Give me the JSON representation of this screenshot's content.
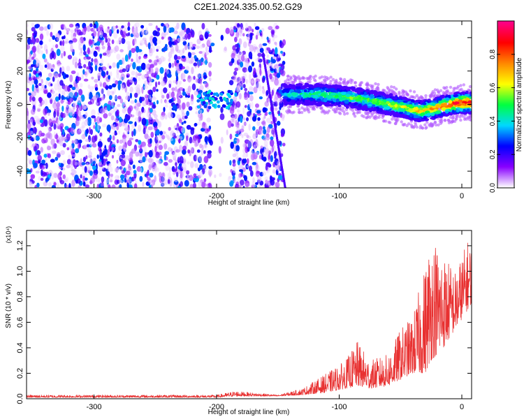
{
  "title": "C2E1.2024.335.00.52.G29",
  "chart_data": [
    {
      "type": "heatmap",
      "xlabel": "Height of straight line (km)",
      "ylabel": "Frequency (Hz)",
      "xlim": [
        -355,
        8
      ],
      "ylim": [
        -50,
        50
      ],
      "xticks": [
        -300,
        -200,
        -100,
        0
      ],
      "yticks": [
        -40,
        -20,
        0,
        20,
        40
      ],
      "xtick_labels": [
        "-300",
        "-200",
        "-100",
        "0"
      ],
      "ytick_labels": [
        "-40",
        "-20",
        "0",
        "20",
        "40"
      ],
      "colorbar": {
        "label": "Normalized spectral amplitude",
        "range": [
          0,
          1
        ],
        "ticks": [
          0.0,
          0.2,
          0.4,
          0.6,
          0.8
        ],
        "tick_labels": [
          "0.0",
          "0.2",
          "0.4",
          "0.6",
          "0.8"
        ],
        "colormap": [
          "#ffffff",
          "#8800ff",
          "#0000ff",
          "#00d8ff",
          "#00ff40",
          "#ffff00",
          "#ff8800",
          "#ff0000",
          "#ff0088"
        ]
      },
      "noise_region": {
        "x": [
          -355,
          -145
        ],
        "y": [
          -50,
          48
        ],
        "typical_amplitude": 0.15
      },
      "ridge": [
        {
          "x": -215,
          "y": 5,
          "amp": 0.35
        },
        {
          "x": -195,
          "y": 6,
          "amp": 0.45
        },
        {
          "x": -140,
          "y": 6,
          "amp": 0.4
        },
        {
          "x": -120,
          "y": 6,
          "amp": 0.5
        },
        {
          "x": -100,
          "y": 5,
          "amp": 0.55
        },
        {
          "x": -80,
          "y": 3,
          "amp": 0.55
        },
        {
          "x": -60,
          "y": 0,
          "amp": 0.6
        },
        {
          "x": -45,
          "y": -2,
          "amp": 0.65
        },
        {
          "x": -35,
          "y": -4,
          "amp": 0.7
        },
        {
          "x": -20,
          "y": -2,
          "amp": 0.75
        },
        {
          "x": -10,
          "y": 0,
          "amp": 0.85
        },
        {
          "x": 0,
          "y": 1,
          "amp": 0.95
        },
        {
          "x": 8,
          "y": 1,
          "amp": 0.95
        }
      ]
    },
    {
      "type": "line",
      "xlabel": "Height of straight line (km)",
      "ylabel": "SNR (10 * v/v)",
      "scale_label": "(x10⁴)",
      "xlim": [
        -355,
        8
      ],
      "ylim": [
        0,
        1.32
      ],
      "xticks": [
        -300,
        -200,
        -100,
        0
      ],
      "yticks": [
        0.0,
        0.2,
        0.4,
        0.6,
        0.8,
        1.0,
        1.2
      ],
      "xtick_labels": [
        "-300",
        "-200",
        "-100",
        "0"
      ],
      "ytick_labels": [
        "0.0",
        "0.2",
        "0.4",
        "0.6",
        "0.8",
        "1.0",
        "1.2"
      ],
      "color": "#e83030",
      "envelope": [
        {
          "x": -355,
          "base": 0.01,
          "peak": 0.03
        },
        {
          "x": -200,
          "base": 0.01,
          "peak": 0.03
        },
        {
          "x": -185,
          "base": 0.02,
          "peak": 0.06
        },
        {
          "x": -150,
          "base": 0.02,
          "peak": 0.03
        },
        {
          "x": -130,
          "base": 0.03,
          "peak": 0.08
        },
        {
          "x": -110,
          "base": 0.05,
          "peak": 0.2
        },
        {
          "x": -95,
          "base": 0.08,
          "peak": 0.3
        },
        {
          "x": -85,
          "base": 0.1,
          "peak": 0.45
        },
        {
          "x": -75,
          "base": 0.08,
          "peak": 0.3
        },
        {
          "x": -60,
          "base": 0.1,
          "peak": 0.35
        },
        {
          "x": -50,
          "base": 0.15,
          "peak": 0.55
        },
        {
          "x": -40,
          "base": 0.2,
          "peak": 0.65
        },
        {
          "x": -30,
          "base": 0.2,
          "peak": 1.05
        },
        {
          "x": -25,
          "base": 0.3,
          "peak": 1.32
        },
        {
          "x": -15,
          "base": 0.4,
          "peak": 1.15
        },
        {
          "x": -5,
          "base": 0.55,
          "peak": 1.0
        },
        {
          "x": 5,
          "base": 0.7,
          "peak": 1.25
        },
        {
          "x": 8,
          "base": 0.75,
          "peak": 1.2
        }
      ]
    }
  ]
}
